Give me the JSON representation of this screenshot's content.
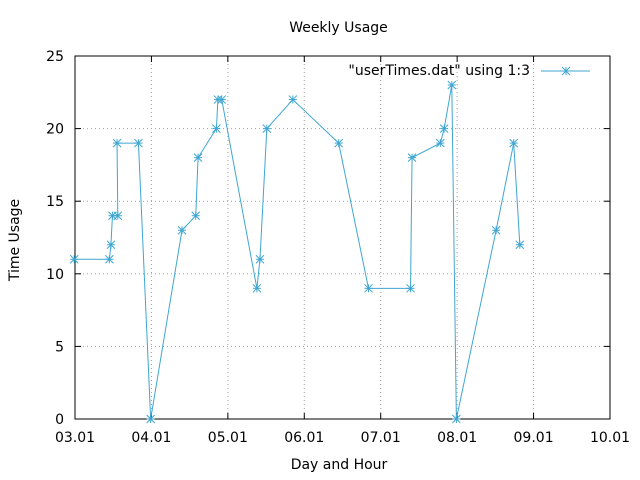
{
  "chart_data": {
    "type": "line",
    "title": "Weekly Usage",
    "xlabel": "Day and Hour",
    "ylabel": "Time Usage",
    "xlim": [
      3.01,
      10.01
    ],
    "ylim": [
      0,
      25
    ],
    "x_ticks": [
      3.01,
      4.01,
      5.01,
      6.01,
      7.01,
      8.01,
      9.01,
      10.01
    ],
    "x_tick_labels": [
      "03.01",
      "04.01",
      "05.01",
      "06.01",
      "07.01",
      "08.01",
      "09.01",
      "10.01"
    ],
    "y_ticks": [
      0,
      5,
      10,
      15,
      20,
      25
    ],
    "y_tick_labels": [
      "0",
      "5",
      "10",
      "15",
      "20",
      "25"
    ],
    "grid": true,
    "legend": {
      "position": "top-right",
      "entries": [
        "\"userTimes.dat\" using 1:3"
      ]
    },
    "series": [
      {
        "name": "\"userTimes.dat\" using 1:3",
        "color": "#3fa6d1",
        "marker": "asterisk",
        "points": [
          {
            "x": 3.0,
            "y": 11
          },
          {
            "x": 3.46,
            "y": 11
          },
          {
            "x": 3.48,
            "y": 12
          },
          {
            "x": 3.5,
            "y": 14
          },
          {
            "x": 3.57,
            "y": 14
          },
          {
            "x": 3.56,
            "y": 19
          },
          {
            "x": 3.84,
            "y": 19
          },
          {
            "x": 4.0,
            "y": 0
          },
          {
            "x": 4.41,
            "y": 13
          },
          {
            "x": 4.59,
            "y": 14
          },
          {
            "x": 4.62,
            "y": 18
          },
          {
            "x": 4.86,
            "y": 20
          },
          {
            "x": 4.88,
            "y": 22
          },
          {
            "x": 4.93,
            "y": 22
          },
          {
            "x": 5.39,
            "y": 9
          },
          {
            "x": 5.43,
            "y": 11
          },
          {
            "x": 5.52,
            "y": 20
          },
          {
            "x": 5.86,
            "y": 22
          },
          {
            "x": 6.46,
            "y": 19
          },
          {
            "x": 6.85,
            "y": 9
          },
          {
            "x": 7.4,
            "y": 9
          },
          {
            "x": 7.42,
            "y": 18
          },
          {
            "x": 7.79,
            "y": 19
          },
          {
            "x": 7.84,
            "y": 20
          },
          {
            "x": 7.94,
            "y": 23
          },
          {
            "x": 8.0,
            "y": 0
          },
          {
            "x": 8.52,
            "y": 13
          },
          {
            "x": 8.75,
            "y": 19
          },
          {
            "x": 8.83,
            "y": 12
          }
        ]
      }
    ]
  }
}
